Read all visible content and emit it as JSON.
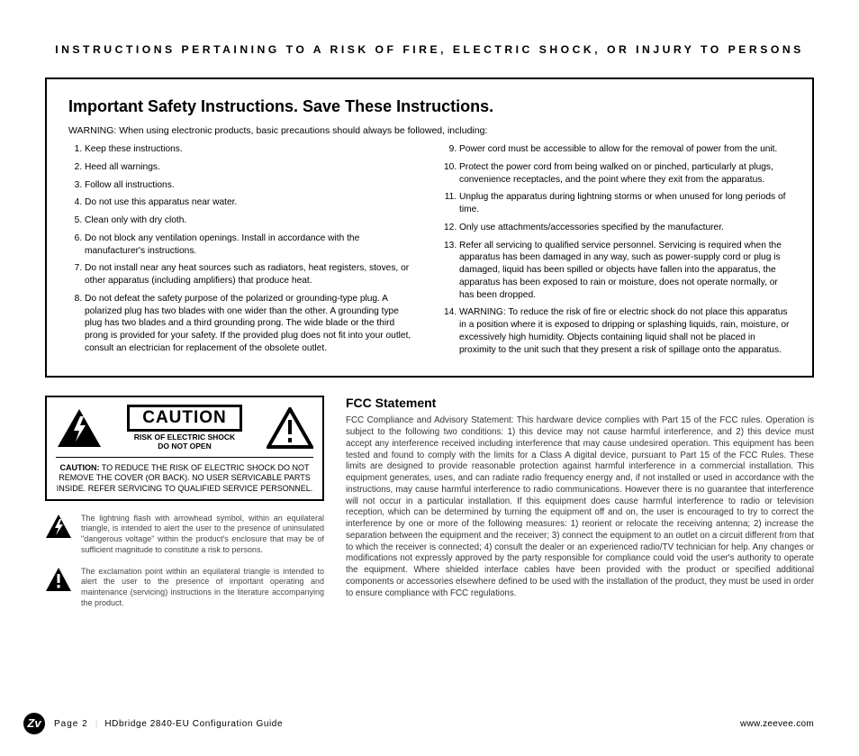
{
  "topHeading": "INSTRUCTIONS PERTAINING TO A RISK OF FIRE, ELECTRIC SHOCK, OR INJURY TO PERSONS",
  "safety": {
    "title": "Important Safety Instructions. Save These Instructions.",
    "intro": "WARNING: When using electronic products, basic precautions should always be followed, including:",
    "left": [
      "Keep these instructions.",
      "Heed all warnings.",
      "Follow all instructions.",
      "Do not use this apparatus near water.",
      "Clean only with dry cloth.",
      "Do not block any ventilation openings. Install in accordance with the manufacturer's instructions.",
      "Do not install near any heat sources such as radiators, heat registers, stoves, or other apparatus (including amplifiers) that produce heat.",
      "Do not defeat the safety purpose of the polarized or grounding-type plug. A polarized plug has two blades with one wider than the other. A grounding type plug has two blades and a third grounding prong. The wide blade or the third prong is provided for your safety. If the provided plug does not fit into your outlet, consult an electrician for replacement of the obsolete outlet."
    ],
    "right": [
      "Power cord must be accessible to allow for the removal of power from the unit.",
      "Protect the power cord from being walked on or pinched, particularly at plugs, convenience receptacles, and the point where they exit from the apparatus.",
      "Unplug the apparatus during lightning storms or when unused for long periods of time.",
      "Only use attachments/accessories specified by the manufacturer.",
      "Refer all servicing to qualified service personnel. Servicing is required when the apparatus has been damaged in any way, such as power-supply cord or plug is damaged, liquid has been spilled or objects have fallen into the apparatus, the apparatus has been exposed to rain or moisture, does not operate normally, or has been dropped.",
      "WARNING: To reduce the risk of fire or electric shock do not place this apparatus in a position where it is exposed to dripping or splashing liquids, rain, moisture, or excessively high humidity. Objects containing liquid shall not be placed in proximity to the unit such that they present a risk of spillage onto the apparatus."
    ]
  },
  "caution": {
    "word": "CAUTION",
    "line1": "RISK OF ELECTRIC SHOCK",
    "line2": "DO NOT OPEN",
    "bold": "CAUTION:",
    "rest": " TO REDUCE THE RISK OF ELECTRIC SHOCK DO NOT REMOVE THE COVER (OR BACK). NO USER SERVICABLE PARTS INSIDE. REFER SERVICING TO QUALIFIED SERVICE PERSONNEL."
  },
  "symbols": {
    "bolt": "The lightning flash with arrowhead symbol, within an equilateral triangle, is intended to alert the user to the presence of uninsulated \"dangerous voltage\" within the product's enclosure that may be of sufficient magnitude to constitute a risk to persons.",
    "exclaim": "The exclamation point within an equilateral triangle is intended to alert the user to the presence of important operating and maintenance (servicing) instructions in the literature accompanying the product."
  },
  "fcc": {
    "title": "FCC Statement",
    "body": "FCC Compliance and Advisory Statement: This hardware device complies with Part 15 of the FCC rules. Operation is subject to the following two conditions: 1) this device may not cause harmful interference, and 2) this device must accept any interference received including interference that may cause undesired operation. This equipment has been tested and found to comply with the limits for a Class A digital device, pursuant to Part 15 of the FCC Rules. These limits are designed to provide reasonable protection against harmful interference in a commercial installation. This equipment generates, uses, and can radiate radio frequency energy and, if not installed or used in accordance with the instructions, may cause harmful interference to radio communications. However there is no guarantee that interference will not occur in a particular installation. If this equipment does cause harmful interference to radio or television reception, which can be determined by turning the equipment off and on, the user is encouraged to try to correct the interference by one or more of the following measures: 1) reorient or relocate the receiving antenna; 2) increase the separation between the equipment and the receiver; 3) connect the equipment to an outlet on a circuit different from that to which the receiver is connected; 4) consult the dealer or an experienced radio/TV technician for help. Any changes or modifications not expressly approved by the party responsible for compliance could void the user's authority to operate the equipment. Where shielded interface cables have been provided with the product or specified additional components or accessories elsewhere defined to be used with the installation of the product, they must be used in order to ensure compliance with FCC regulations."
  },
  "footer": {
    "logo": "Zv",
    "page": "Page 2",
    "guide": "HDbridge 2840-EU Configuration Guide",
    "url": "www.zeevee.com"
  }
}
